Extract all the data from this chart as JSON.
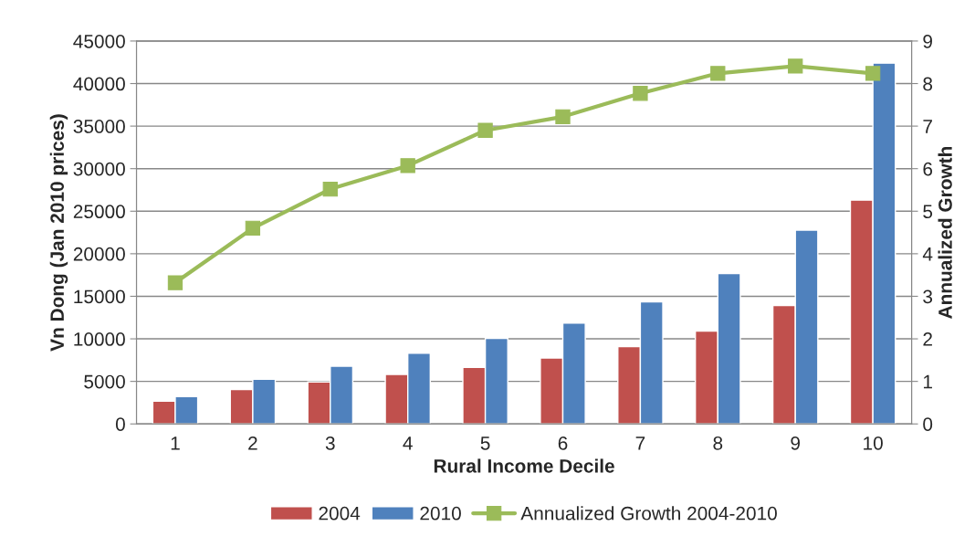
{
  "chart_data": {
    "type": "bar",
    "xlabel": "Rural Income Decile",
    "ylabel": "Vn Dong (Jan 2010 prices)",
    "y2label": "Annualized Growth",
    "categories": [
      "1",
      "2",
      "3",
      "4",
      "5",
      "6",
      "7",
      "8",
      "9",
      "10"
    ],
    "series": [
      {
        "name": "2004",
        "color": "#c0504d",
        "values": [
          2680,
          4030,
          4930,
          5820,
          6640,
          7750,
          9100,
          10920,
          13920,
          26300
        ]
      },
      {
        "name": "2010",
        "color": "#4f81bd",
        "values": [
          3210,
          5250,
          6780,
          8320,
          10060,
          11850,
          14350,
          17670,
          22770,
          42400
        ]
      },
      {
        "name": "Annualized Growth 2004-2010",
        "color": "#9bbb59",
        "type": "line",
        "axis": "y2",
        "marker": "square",
        "line_style": "solid",
        "values": [
          3.32,
          4.6,
          5.52,
          6.07,
          6.9,
          7.22,
          7.77,
          8.24,
          8.41,
          8.24
        ]
      }
    ],
    "ylim": [
      0,
      45000
    ],
    "yticks": [
      0,
      5000,
      10000,
      15000,
      20000,
      25000,
      30000,
      35000,
      40000,
      45000
    ],
    "y2lim": [
      0,
      9
    ],
    "y2ticks": [
      0,
      1,
      2,
      3,
      4,
      5,
      6,
      7,
      8,
      9
    ],
    "grid": "y",
    "legend": "bottom"
  }
}
